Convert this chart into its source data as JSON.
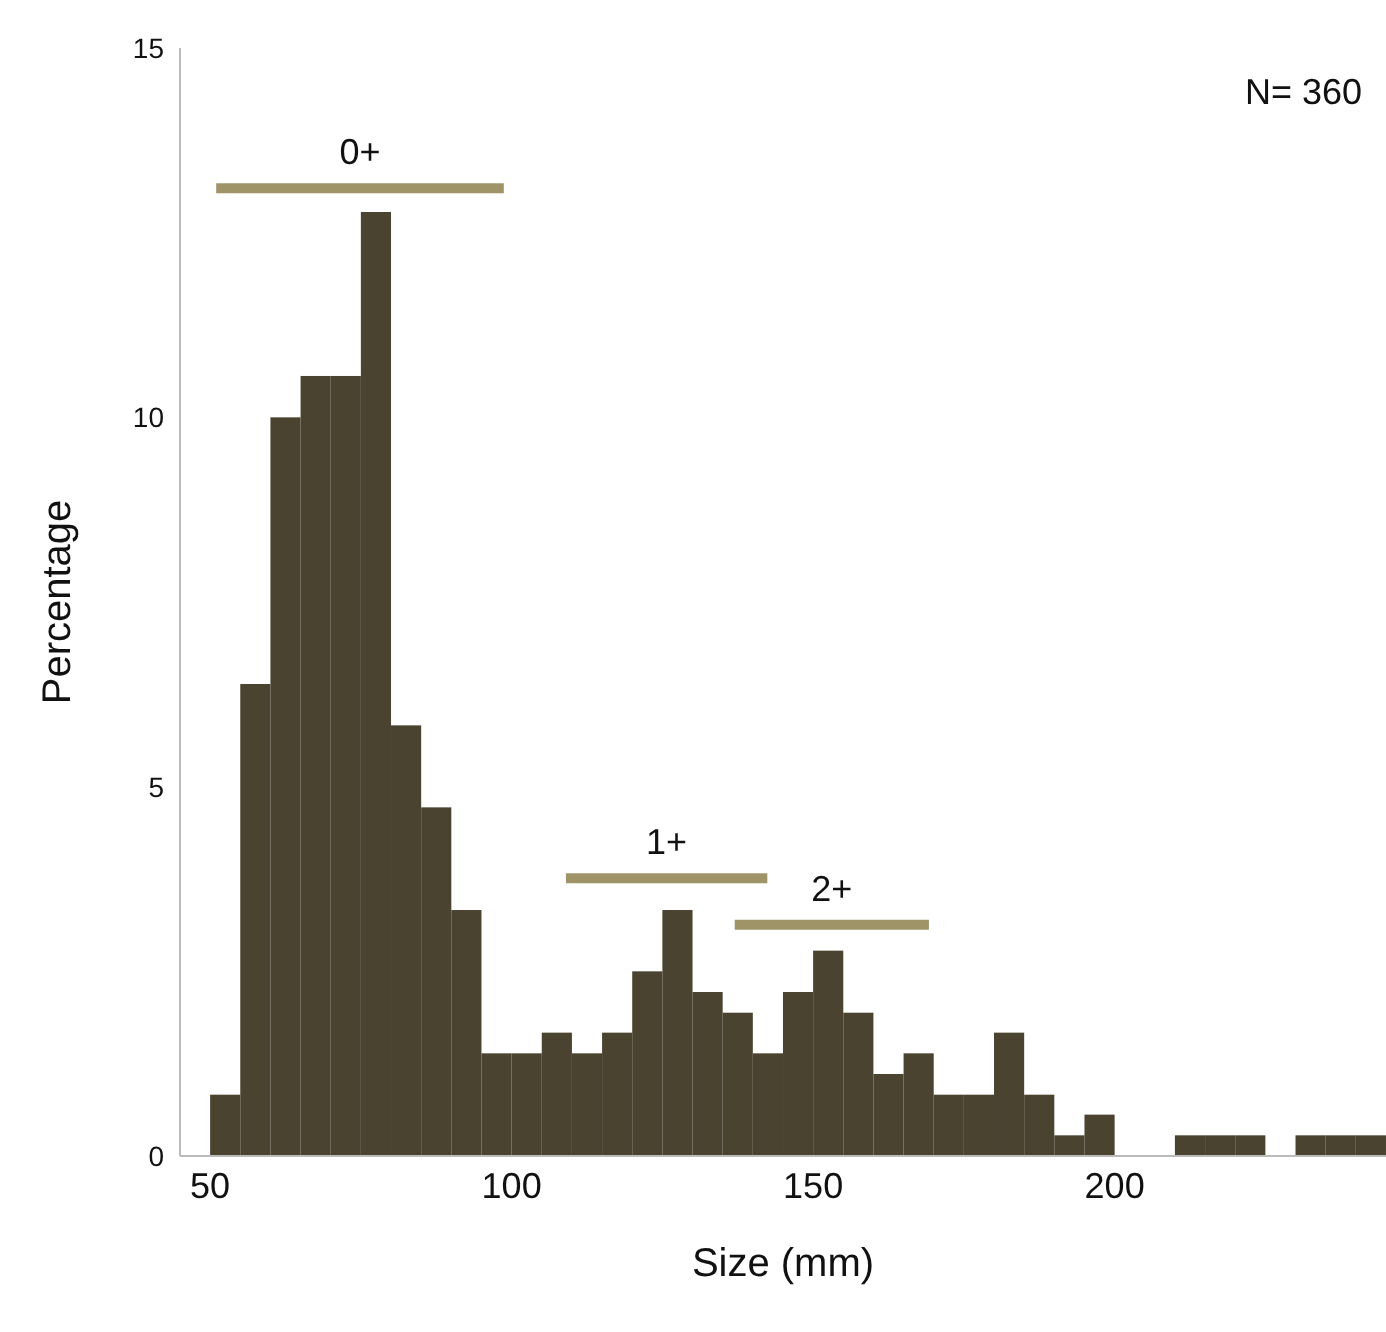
{
  "chart_data": {
    "type": "histogram",
    "xlabel": "Size (mm)",
    "ylabel": "Percentage",
    "bins": [
      50,
      55,
      60,
      65,
      70,
      75,
      80,
      85,
      90,
      95,
      100,
      105,
      110,
      115,
      120,
      125,
      130,
      135,
      140,
      145,
      150,
      155,
      160,
      165,
      170,
      175,
      180,
      185,
      190,
      195,
      200,
      205,
      210,
      215,
      220,
      225,
      230,
      235,
      240,
      245
    ],
    "values": [
      0.83,
      6.39,
      10,
      10.56,
      10.56,
      12.78,
      5.83,
      4.72,
      3.33,
      1.39,
      1.39,
      1.67,
      1.39,
      1.67,
      2.5,
      3.33,
      2.22,
      1.94,
      1.39,
      2.22,
      2.78,
      1.94,
      1.11,
      1.39,
      0.83,
      0.83,
      1.67,
      0.83,
      0.28,
      0.56,
      0,
      0,
      0.28,
      0.28,
      0.28,
      0,
      0.28,
      0.28,
      0.28
    ],
    "color": "#4a4330",
    "series": [
      {
        "type": "line",
        "name": "0+",
        "color": "#9e9468",
        "x": [
          51,
          98.7
        ],
        "values": [
          13.1,
          13.1
        ]
      },
      {
        "type": "line",
        "name": "1+",
        "color": "#9e9468",
        "x": [
          109,
          142.4
        ],
        "values": [
          3.76,
          3.76
        ]
      },
      {
        "type": "line",
        "name": "2+",
        "color": "#9e9468",
        "x": [
          137,
          169.2
        ],
        "values": [
          3.13,
          3.13
        ]
      }
    ],
    "xlim": [
      45,
      245
    ],
    "xticks": [
      50,
      100,
      150,
      200
    ],
    "ylim": [
      0,
      15
    ],
    "yticks": [
      0,
      5,
      10,
      15
    ],
    "grid": false,
    "legend": false,
    "marker": "none",
    "line_style": "solid",
    "annotations": [
      "N= 360"
    ]
  }
}
